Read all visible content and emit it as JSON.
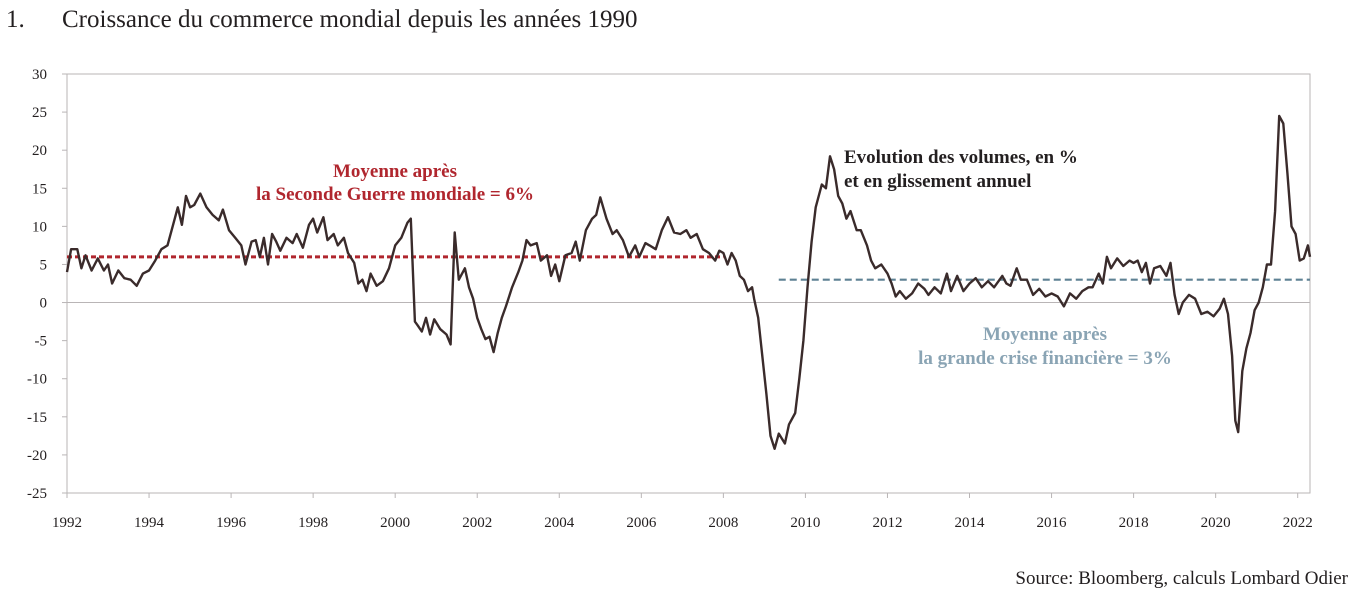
{
  "figure": {
    "number": "1.",
    "title": "Croissance du commerce mondial depuis les années 1990",
    "source": "Source: Bloomberg, calculs Lombard Odier"
  },
  "colors": {
    "series": "#3a2b2b",
    "avg_postwar": "#b0262e",
    "avg_postgfc": "#5e8194",
    "avg_postgfc_text": "#8aa4b4",
    "annotation_text": "#231f20",
    "axis": "#b9b5b6"
  },
  "chart_data": {
    "type": "line",
    "title": "Croissance du commerce mondial depuis les années 1990",
    "xlabel": "",
    "ylabel": "",
    "xlim": [
      1992,
      2022.3
    ],
    "ylim": [
      -25,
      30
    ],
    "grid": false,
    "x_ticks": [
      "1992",
      "1994",
      "1996",
      "1998",
      "2000",
      "2002",
      "2004",
      "2006",
      "2008",
      "2010",
      "2012",
      "2014",
      "2016",
      "2018",
      "2020",
      "2022"
    ],
    "y_ticks": [
      "30",
      "25",
      "20",
      "15",
      "10",
      "5",
      "0",
      "-5",
      "-10",
      "-15",
      "-20",
      "-25"
    ],
    "series": [
      {
        "name": "Evolution des volumes, en % et en glissement annuel",
        "points": [
          [
            1992.0,
            4
          ],
          [
            1992.1,
            7
          ],
          [
            1992.25,
            7
          ],
          [
            1992.35,
            4.5
          ],
          [
            1992.45,
            6.2
          ],
          [
            1992.6,
            4.2
          ],
          [
            1992.75,
            5.8
          ],
          [
            1992.9,
            4.2
          ],
          [
            1993.0,
            5
          ],
          [
            1993.1,
            2.5
          ],
          [
            1993.25,
            4.2
          ],
          [
            1993.4,
            3.2
          ],
          [
            1993.55,
            3.0
          ],
          [
            1993.7,
            2.2
          ],
          [
            1993.85,
            3.8
          ],
          [
            1994.0,
            4.2
          ],
          [
            1994.15,
            5.5
          ],
          [
            1994.3,
            7.0
          ],
          [
            1994.45,
            7.5
          ],
          [
            1994.6,
            10.5
          ],
          [
            1994.7,
            12.5
          ],
          [
            1994.8,
            10.2
          ],
          [
            1994.9,
            14.0
          ],
          [
            1995.0,
            12.5
          ],
          [
            1995.1,
            12.8
          ],
          [
            1995.25,
            14.3
          ],
          [
            1995.4,
            12.5
          ],
          [
            1995.55,
            11.5
          ],
          [
            1995.7,
            10.8
          ],
          [
            1995.8,
            12.2
          ],
          [
            1995.95,
            9.5
          ],
          [
            1996.1,
            8.5
          ],
          [
            1996.25,
            7.5
          ],
          [
            1996.35,
            5.0
          ],
          [
            1996.5,
            8.0
          ],
          [
            1996.6,
            8.2
          ],
          [
            1996.7,
            6.0
          ],
          [
            1996.8,
            8.5
          ],
          [
            1996.9,
            5.0
          ],
          [
            1997.0,
            9.0
          ],
          [
            1997.1,
            8.0
          ],
          [
            1997.2,
            6.8
          ],
          [
            1997.35,
            8.5
          ],
          [
            1997.5,
            7.8
          ],
          [
            1997.6,
            9.0
          ],
          [
            1997.75,
            7.2
          ],
          [
            1997.9,
            10.2
          ],
          [
            1998.0,
            11.0
          ],
          [
            1998.1,
            9.2
          ],
          [
            1998.25,
            11.2
          ],
          [
            1998.35,
            8.2
          ],
          [
            1998.5,
            9.0
          ],
          [
            1998.6,
            7.5
          ],
          [
            1998.75,
            8.5
          ],
          [
            1998.85,
            6.5
          ],
          [
            1999.0,
            5.2
          ],
          [
            1999.1,
            2.5
          ],
          [
            1999.2,
            3.0
          ],
          [
            1999.3,
            1.5
          ],
          [
            1999.4,
            3.8
          ],
          [
            1999.55,
            2.2
          ],
          [
            1999.7,
            2.8
          ],
          [
            1999.85,
            4.5
          ],
          [
            2000.0,
            7.5
          ],
          [
            2000.15,
            8.5
          ],
          [
            2000.3,
            10.5
          ],
          [
            2000.38,
            11.0
          ],
          [
            2000.48,
            -2.5
          ],
          [
            2000.55,
            -3.0
          ],
          [
            2000.65,
            -3.8
          ],
          [
            2000.75,
            -2.0
          ],
          [
            2000.85,
            -4.2
          ],
          [
            2000.95,
            -2.2
          ],
          [
            2001.1,
            -3.5
          ],
          [
            2001.25,
            -4.2
          ],
          [
            2001.35,
            -5.5
          ],
          [
            2001.45,
            9.2
          ],
          [
            2001.55,
            3.0
          ],
          [
            2001.7,
            4.5
          ],
          [
            2001.8,
            2.0
          ],
          [
            2001.9,
            0.5
          ],
          [
            2002.0,
            -2.0
          ],
          [
            2002.1,
            -3.5
          ],
          [
            2002.2,
            -4.8
          ],
          [
            2002.3,
            -4.5
          ],
          [
            2002.4,
            -6.5
          ],
          [
            2002.5,
            -4.0
          ],
          [
            2002.6,
            -2.0
          ],
          [
            2002.7,
            -0.5
          ],
          [
            2002.85,
            2.0
          ],
          [
            2003.0,
            4.0
          ],
          [
            2003.1,
            5.5
          ],
          [
            2003.2,
            8.2
          ],
          [
            2003.3,
            7.5
          ],
          [
            2003.45,
            7.8
          ],
          [
            2003.55,
            5.5
          ],
          [
            2003.7,
            6.2
          ],
          [
            2003.8,
            3.5
          ],
          [
            2003.9,
            5.0
          ],
          [
            2004.0,
            2.8
          ],
          [
            2004.15,
            6.2
          ],
          [
            2004.3,
            6.5
          ],
          [
            2004.4,
            8.0
          ],
          [
            2004.5,
            5.5
          ],
          [
            2004.65,
            9.5
          ],
          [
            2004.8,
            11.0
          ],
          [
            2004.9,
            11.5
          ],
          [
            2005.0,
            13.8
          ],
          [
            2005.15,
            11.0
          ],
          [
            2005.3,
            9.0
          ],
          [
            2005.4,
            9.5
          ],
          [
            2005.55,
            8.2
          ],
          [
            2005.7,
            6.0
          ],
          [
            2005.85,
            7.5
          ],
          [
            2005.95,
            6.0
          ],
          [
            2006.1,
            7.8
          ],
          [
            2006.2,
            7.5
          ],
          [
            2006.35,
            7.0
          ],
          [
            2006.5,
            9.5
          ],
          [
            2006.65,
            11.2
          ],
          [
            2006.8,
            9.2
          ],
          [
            2006.95,
            9.0
          ],
          [
            2007.1,
            9.5
          ],
          [
            2007.2,
            8.5
          ],
          [
            2007.35,
            9.0
          ],
          [
            2007.5,
            7.0
          ],
          [
            2007.65,
            6.5
          ],
          [
            2007.8,
            5.5
          ],
          [
            2007.9,
            6.8
          ],
          [
            2008.0,
            6.5
          ],
          [
            2008.1,
            5.0
          ],
          [
            2008.2,
            6.5
          ],
          [
            2008.3,
            5.5
          ],
          [
            2008.4,
            3.5
          ],
          [
            2008.5,
            3.0
          ],
          [
            2008.6,
            1.5
          ],
          [
            2008.7,
            2.0
          ],
          [
            2008.75,
            0.5
          ],
          [
            2008.85,
            -2.0
          ],
          [
            2008.95,
            -7.0
          ],
          [
            2009.05,
            -12.0
          ],
          [
            2009.15,
            -17.5
          ],
          [
            2009.25,
            -19.2
          ],
          [
            2009.35,
            -17.2
          ],
          [
            2009.5,
            -18.5
          ],
          [
            2009.6,
            -16.0
          ],
          [
            2009.75,
            -14.5
          ],
          [
            2009.85,
            -10.0
          ],
          [
            2009.95,
            -5.0
          ],
          [
            2010.05,
            2.0
          ],
          [
            2010.15,
            8.0
          ],
          [
            2010.25,
            12.5
          ],
          [
            2010.4,
            15.5
          ],
          [
            2010.5,
            15.0
          ],
          [
            2010.6,
            19.2
          ],
          [
            2010.7,
            17.5
          ],
          [
            2010.8,
            14.0
          ],
          [
            2010.9,
            13.0
          ],
          [
            2011.0,
            11.0
          ],
          [
            2011.1,
            12.0
          ],
          [
            2011.25,
            9.5
          ],
          [
            2011.35,
            9.5
          ],
          [
            2011.5,
            7.5
          ],
          [
            2011.6,
            5.5
          ],
          [
            2011.7,
            4.5
          ],
          [
            2011.85,
            5.0
          ],
          [
            2012.0,
            3.8
          ],
          [
            2012.1,
            2.5
          ],
          [
            2012.2,
            0.8
          ],
          [
            2012.3,
            1.5
          ],
          [
            2012.45,
            0.5
          ],
          [
            2012.6,
            1.2
          ],
          [
            2012.75,
            2.5
          ],
          [
            2012.9,
            1.8
          ],
          [
            2013.0,
            1.0
          ],
          [
            2013.15,
            2.0
          ],
          [
            2013.3,
            1.2
          ],
          [
            2013.45,
            3.8
          ],
          [
            2013.55,
            1.5
          ],
          [
            2013.7,
            3.5
          ],
          [
            2013.85,
            1.5
          ],
          [
            2014.0,
            2.5
          ],
          [
            2014.15,
            3.2
          ],
          [
            2014.3,
            2.0
          ],
          [
            2014.45,
            2.8
          ],
          [
            2014.6,
            2.0
          ],
          [
            2014.8,
            3.5
          ],
          [
            2014.9,
            2.5
          ],
          [
            2015.0,
            2.2
          ],
          [
            2015.15,
            4.5
          ],
          [
            2015.25,
            3.0
          ],
          [
            2015.4,
            3.0
          ],
          [
            2015.55,
            1.0
          ],
          [
            2015.7,
            1.8
          ],
          [
            2015.85,
            0.8
          ],
          [
            2016.0,
            1.2
          ],
          [
            2016.15,
            0.8
          ],
          [
            2016.3,
            -0.5
          ],
          [
            2016.45,
            1.2
          ],
          [
            2016.6,
            0.5
          ],
          [
            2016.75,
            1.5
          ],
          [
            2016.9,
            2.0
          ],
          [
            2017.0,
            2.0
          ],
          [
            2017.15,
            3.8
          ],
          [
            2017.25,
            2.5
          ],
          [
            2017.35,
            6.0
          ],
          [
            2017.45,
            4.5
          ],
          [
            2017.6,
            5.8
          ],
          [
            2017.75,
            4.8
          ],
          [
            2017.9,
            5.5
          ],
          [
            2018.0,
            5.2
          ],
          [
            2018.1,
            5.5
          ],
          [
            2018.2,
            4.0
          ],
          [
            2018.3,
            5.2
          ],
          [
            2018.4,
            2.5
          ],
          [
            2018.5,
            4.5
          ],
          [
            2018.65,
            4.8
          ],
          [
            2018.8,
            3.5
          ],
          [
            2018.9,
            5.2
          ],
          [
            2019.0,
            1.0
          ],
          [
            2019.1,
            -1.5
          ],
          [
            2019.2,
            0.0
          ],
          [
            2019.35,
            1.0
          ],
          [
            2019.5,
            0.5
          ],
          [
            2019.65,
            -1.5
          ],
          [
            2019.8,
            -1.2
          ],
          [
            2019.95,
            -1.8
          ],
          [
            2020.1,
            -0.8
          ],
          [
            2020.2,
            0.5
          ],
          [
            2020.3,
            -1.5
          ],
          [
            2020.4,
            -7.0
          ],
          [
            2020.48,
            -15.5
          ],
          [
            2020.55,
            -17.0
          ],
          [
            2020.65,
            -9.0
          ],
          [
            2020.75,
            -6.0
          ],
          [
            2020.85,
            -4.0
          ],
          [
            2020.95,
            -1.0
          ],
          [
            2021.05,
            0.0
          ],
          [
            2021.15,
            2.0
          ],
          [
            2021.25,
            5.0
          ],
          [
            2021.35,
            5.0
          ],
          [
            2021.45,
            12.0
          ],
          [
            2021.55,
            24.5
          ],
          [
            2021.65,
            23.5
          ],
          [
            2021.75,
            17.0
          ],
          [
            2021.85,
            10.0
          ],
          [
            2021.95,
            9.0
          ],
          [
            2022.05,
            5.5
          ],
          [
            2022.15,
            5.8
          ],
          [
            2022.25,
            7.5
          ],
          [
            2022.3,
            6.0
          ]
        ]
      }
    ],
    "reference_lines": [
      {
        "label": "Moyenne après la Seconde Guerre mondiale = 6%",
        "value": 6,
        "x_start": 1992.0,
        "x_end": 2008.0
      },
      {
        "label": "Moyenne après la grande crise financière = 3%",
        "value": 3,
        "x_start": 2009.35,
        "x_end": 2022.3
      }
    ],
    "annotations": {
      "series_label": [
        "Evolution des volumes, en %",
        "et en glissement annuel"
      ],
      "postwar_label": [
        "Moyenne après",
        "la Seconde Guerre mondiale = 6%"
      ],
      "postgfc_label": [
        "Moyenne après",
        "la grande crise financière = 3%"
      ]
    }
  }
}
